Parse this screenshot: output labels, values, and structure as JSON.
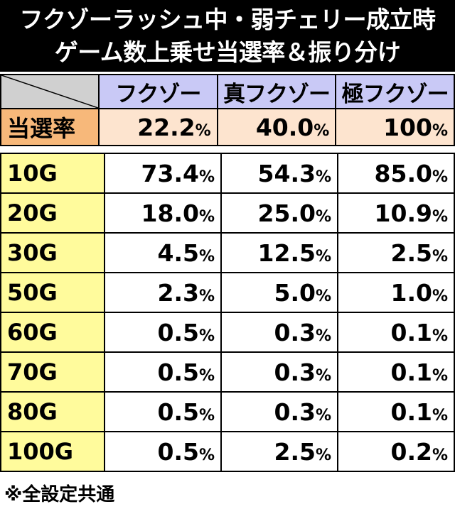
{
  "title": {
    "line1": "フクゾーラッシュ中・弱チェリー成立時",
    "line2": "ゲーム数上乗せ当選率＆振り分け"
  },
  "columns": [
    "フクゾー",
    "真フクゾー",
    "極フクゾー"
  ],
  "rate_row": {
    "label": "当選率",
    "values": [
      "22.2",
      "40.0",
      "100"
    ],
    "unit": "%"
  },
  "rows": [
    {
      "label": "10G",
      "values": [
        "73.4",
        "54.3",
        "85.0"
      ]
    },
    {
      "label": "20G",
      "values": [
        "18.0",
        "25.0",
        "10.9"
      ]
    },
    {
      "label": "30G",
      "values": [
        "4.5",
        "12.5",
        "2.5"
      ]
    },
    {
      "label": "50G",
      "values": [
        "2.3",
        "5.0",
        "1.0"
      ]
    },
    {
      "label": "60G",
      "values": [
        "0.5",
        "0.3",
        "0.1"
      ]
    },
    {
      "label": "70G",
      "values": [
        "0.5",
        "0.3",
        "0.1"
      ]
    },
    {
      "label": "80G",
      "values": [
        "0.5",
        "0.3",
        "0.1"
      ]
    },
    {
      "label": "100G",
      "values": [
        "0.5",
        "2.5",
        "0.2"
      ]
    }
  ],
  "unit": "%",
  "note": "※全設定共通",
  "colors": {
    "title_bg": "#000000",
    "column_header_bg": "#c9c9f6",
    "rate_label_bg": "#f7b87a",
    "rate_value_bg": "#fde4cf",
    "row_label_bg": "#fffb9c"
  }
}
